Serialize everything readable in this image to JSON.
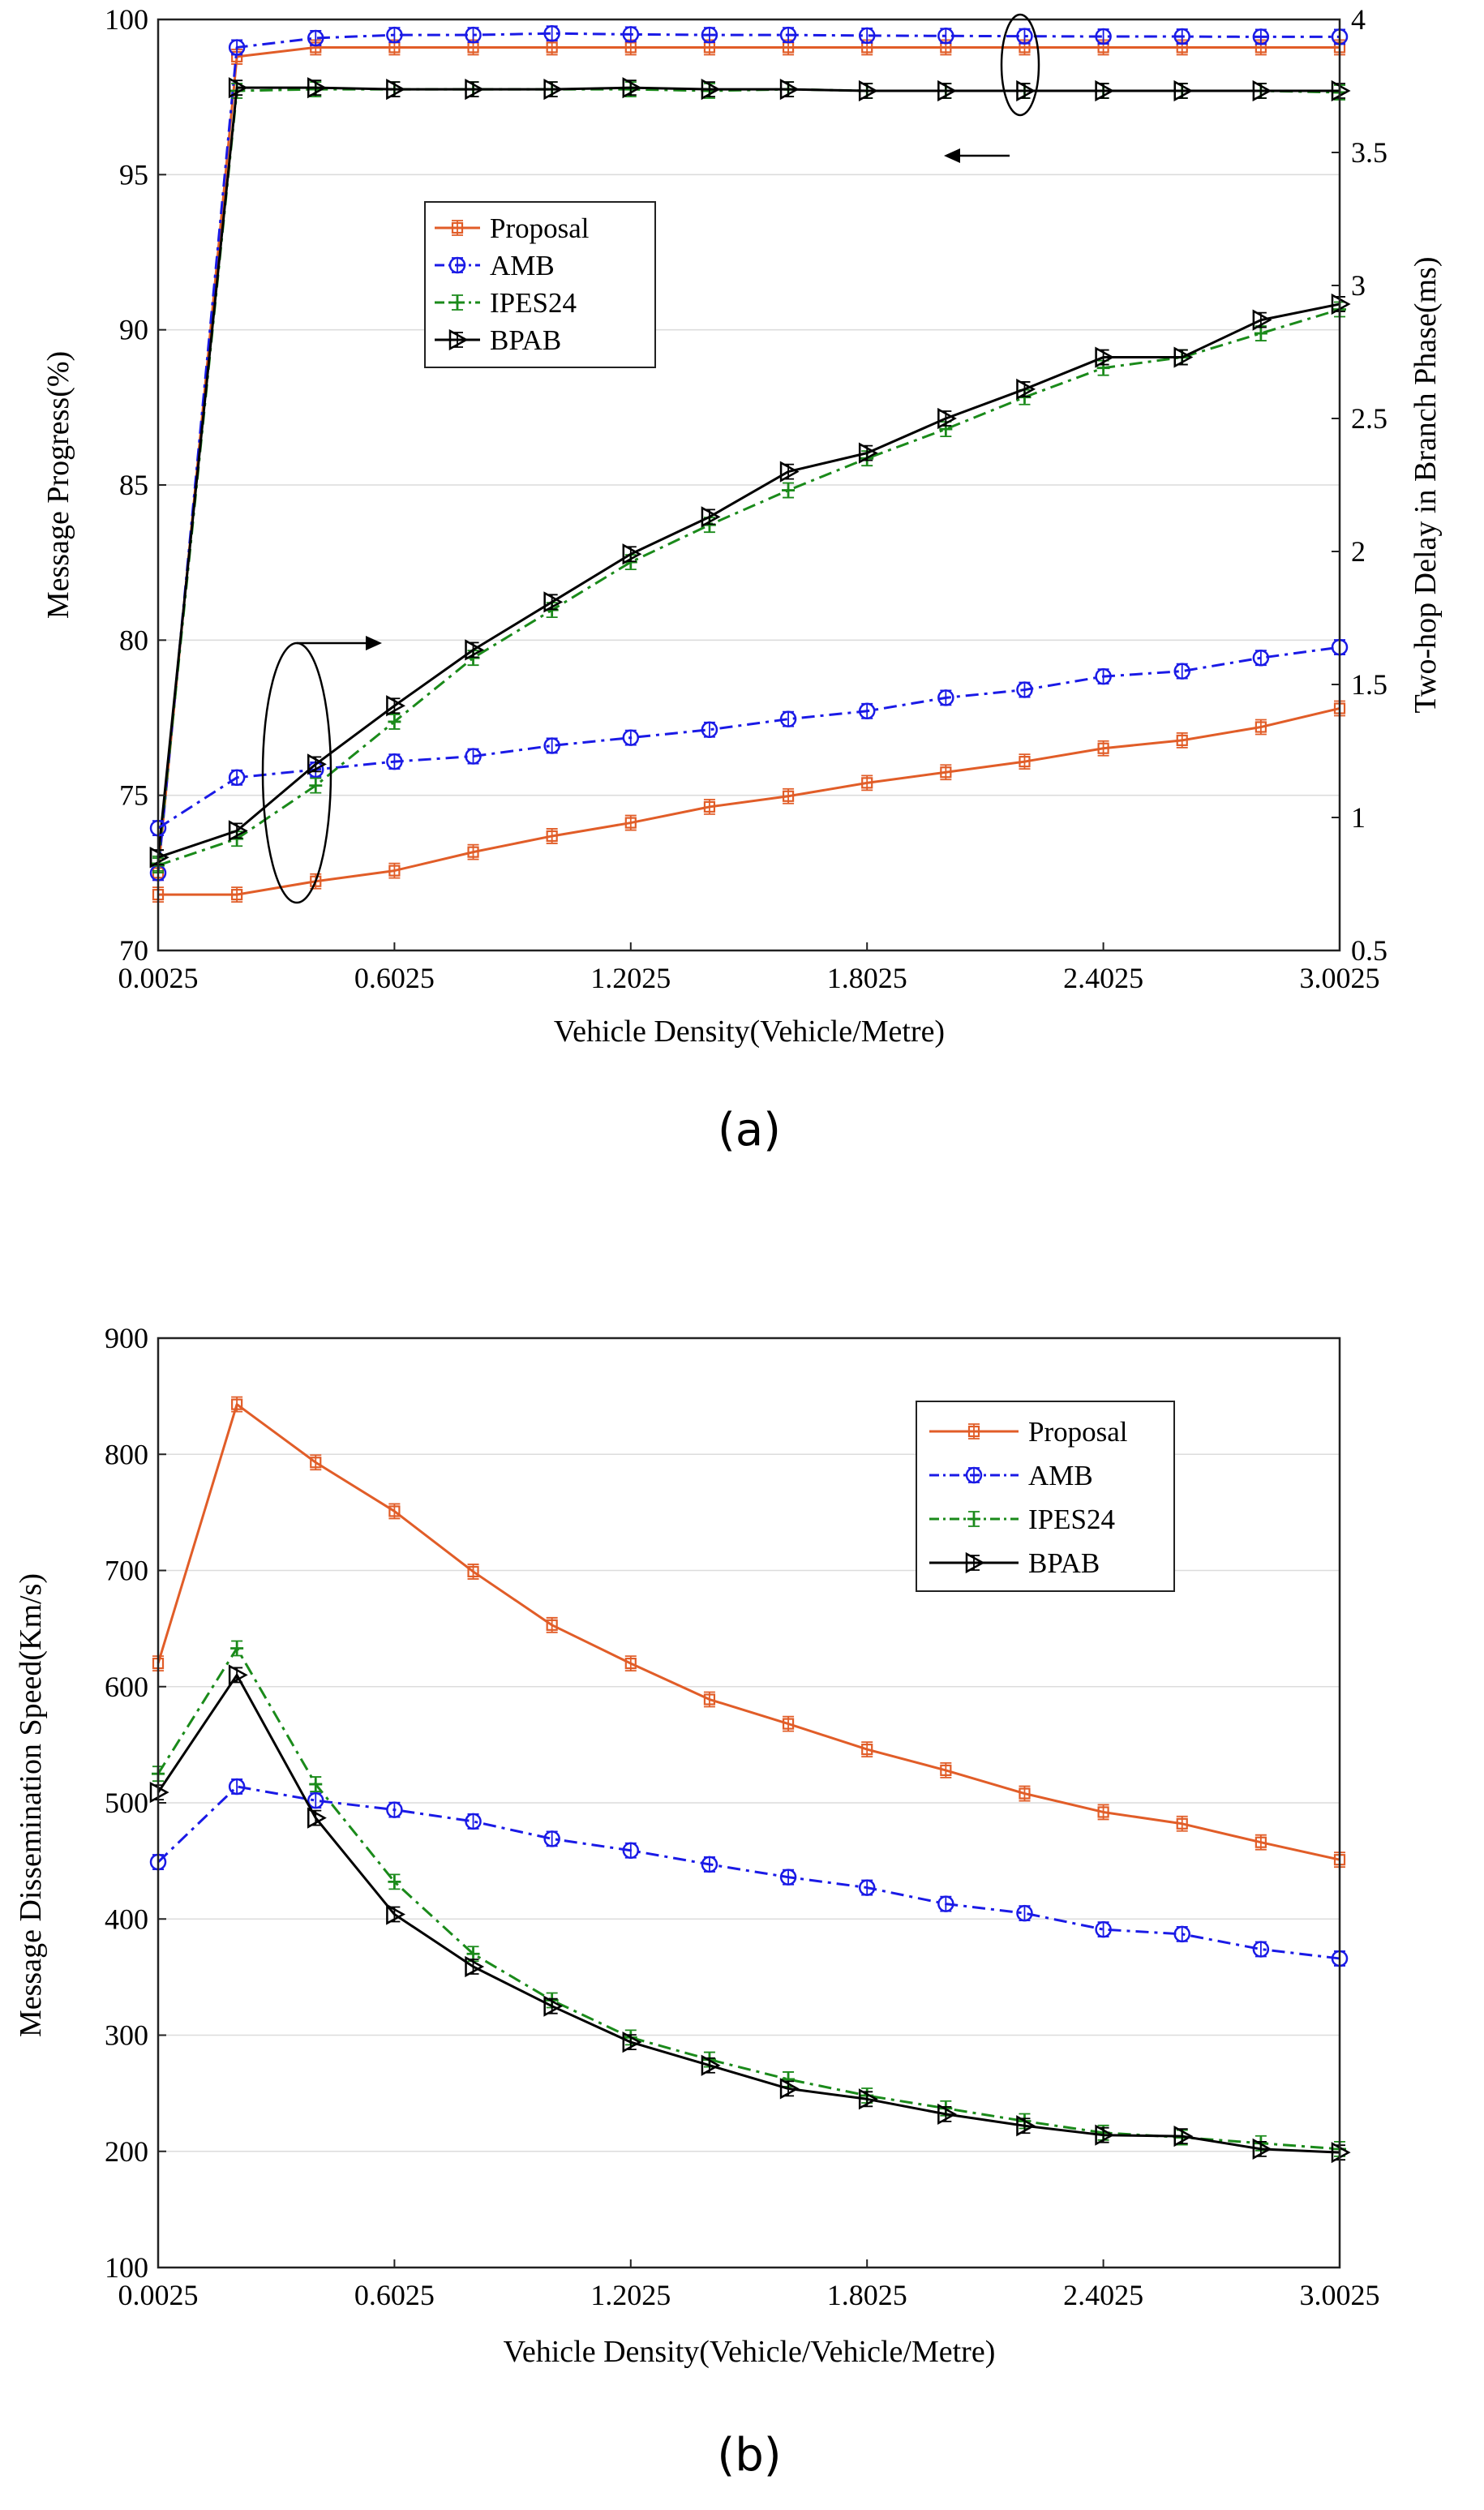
{
  "colors": {
    "Proposal": "#e15d28",
    "AMB": "#1a1ae6",
    "IPES24": "#1a8a1a",
    "BPAB": "#000000"
  },
  "chart_data": [
    {
      "type": "line",
      "panel_label": "(a)",
      "xlabel": "Vehicle Density(Vehicle/Metre)",
      "ylabel": "Message Progress(%)",
      "ylabel_right": "Two-hop Delay in Branch Phase(ms)",
      "xlim": [
        0.0025,
        3.0025
      ],
      "ylim": [
        70,
        100
      ],
      "ylim_right": [
        0.5,
        4
      ],
      "xticks": [
        0.0025,
        0.6025,
        1.2025,
        1.8025,
        2.4025,
        3.0025
      ],
      "xtick_labels": [
        "0.0025",
        "0.6025",
        "1.2025",
        "1.8025",
        "2.4025",
        "3.0025"
      ],
      "yticks": [
        70,
        75,
        80,
        85,
        90,
        95,
        100
      ],
      "ytick_labels": [
        "70",
        "75",
        "80",
        "85",
        "90",
        "95",
        "100"
      ],
      "yticks_right": [
        0.5,
        1,
        1.5,
        2,
        2.5,
        3,
        3.5,
        4
      ],
      "ytick_labels_right": [
        "0.5",
        "1",
        "1.5",
        "2",
        "2.5",
        "3",
        "3.5",
        "4"
      ],
      "grid": "horizontal",
      "legend": "upper-center",
      "x": [
        0.0025,
        0.2025,
        0.4025,
        0.6025,
        0.8025,
        1.0025,
        1.2025,
        1.4025,
        1.6025,
        1.8025,
        2.0025,
        2.2025,
        2.4025,
        2.6025,
        2.8025,
        3.0025
      ],
      "annotations": [
        "ellipse around upper curves with arrow pointing left: read against left axis",
        "ellipse around lower curves with arrow pointing right: read against right axis"
      ],
      "series": [
        {
          "name": "Proposal",
          "axis": "left",
          "values": [
            72.5,
            98.8,
            99.1,
            99.1,
            99.1,
            99.1,
            99.1,
            99.1,
            99.1,
            99.1,
            99.1,
            99.1,
            99.1,
            99.1,
            99.1,
            99.1
          ]
        },
        {
          "name": "AMB",
          "axis": "left",
          "values": [
            72.5,
            99.1,
            99.4,
            99.5,
            99.5,
            99.55,
            99.52,
            99.5,
            99.5,
            99.48,
            99.47,
            99.46,
            99.45,
            99.45,
            99.44,
            99.44
          ]
        },
        {
          "name": "IPES24",
          "axis": "left",
          "values": [
            72.8,
            97.7,
            97.75,
            97.75,
            97.75,
            97.75,
            97.75,
            97.7,
            97.75,
            97.7,
            97.7,
            97.7,
            97.7,
            97.7,
            97.7,
            97.65
          ]
        },
        {
          "name": "BPAB",
          "axis": "left",
          "values": [
            73.0,
            97.8,
            97.8,
            97.75,
            97.75,
            97.75,
            97.8,
            97.75,
            97.75,
            97.7,
            97.7,
            97.7,
            97.7,
            97.7,
            97.7,
            97.7
          ]
        },
        {
          "name": "Proposal",
          "axis": "right",
          "values": [
            0.71,
            0.71,
            0.76,
            0.8,
            0.87,
            0.93,
            0.98,
            1.04,
            1.08,
            1.13,
            1.17,
            1.21,
            1.26,
            1.29,
            1.34,
            1.41
          ]
        },
        {
          "name": "AMB",
          "axis": "right",
          "values": [
            0.96,
            1.15,
            1.18,
            1.21,
            1.23,
            1.27,
            1.3,
            1.33,
            1.37,
            1.4,
            1.45,
            1.48,
            1.53,
            1.55,
            1.6,
            1.64
          ]
        },
        {
          "name": "IPES24",
          "axis": "right",
          "values": [
            0.82,
            0.92,
            1.12,
            1.36,
            1.6,
            1.78,
            1.96,
            2.1,
            2.23,
            2.35,
            2.46,
            2.58,
            2.69,
            2.73,
            2.82,
            2.91
          ]
        },
        {
          "name": "BPAB",
          "axis": "right",
          "values": [
            0.85,
            0.95,
            1.2,
            1.42,
            1.63,
            1.81,
            1.99,
            2.13,
            2.3,
            2.37,
            2.5,
            2.61,
            2.73,
            2.73,
            2.87,
            2.93
          ]
        }
      ]
    },
    {
      "type": "line",
      "panel_label": "(b)",
      "xlabel": "Vehicle Density(Vehicle/Vehicle/Metre)",
      "ylabel": "Message Dissemination Speed(Km/s)",
      "xlim": [
        0.0025,
        3.0025
      ],
      "ylim": [
        100,
        900
      ],
      "xticks": [
        0.0025,
        0.6025,
        1.2025,
        1.8025,
        2.4025,
        3.0025
      ],
      "xtick_labels": [
        "0.0025",
        "0.6025",
        "1.2025",
        "1.8025",
        "2.4025",
        "3.0025"
      ],
      "yticks": [
        100,
        200,
        300,
        400,
        500,
        600,
        700,
        800,
        900
      ],
      "ytick_labels": [
        "100",
        "200",
        "300",
        "400",
        "500",
        "600",
        "700",
        "800",
        "900"
      ],
      "grid": "horizontal",
      "legend": "upper-right",
      "x": [
        0.0025,
        0.2025,
        0.4025,
        0.6025,
        0.8025,
        1.0025,
        1.2025,
        1.4025,
        1.6025,
        1.8025,
        2.0025,
        2.2025,
        2.4025,
        2.6025,
        2.8025,
        3.0025
      ],
      "series": [
        {
          "name": "Proposal",
          "values": [
            620,
            843,
            793,
            751,
            699,
            653,
            620,
            589,
            568,
            546,
            528,
            508,
            492,
            482,
            466,
            451
          ]
        },
        {
          "name": "AMB",
          "values": [
            449,
            514,
            502,
            494,
            484,
            469,
            459,
            447,
            436,
            427,
            413,
            405,
            391,
            387,
            374,
            366
          ]
        },
        {
          "name": "IPES24",
          "values": [
            525,
            633,
            516,
            432,
            370,
            330,
            298,
            279,
            262,
            248,
            237,
            226,
            216,
            212,
            207,
            202
          ]
        },
        {
          "name": "BPAB",
          "values": [
            509,
            610,
            487,
            404,
            359,
            325,
            294,
            274,
            254,
            245,
            232,
            222,
            214,
            213,
            202,
            199
          ]
        }
      ]
    }
  ]
}
